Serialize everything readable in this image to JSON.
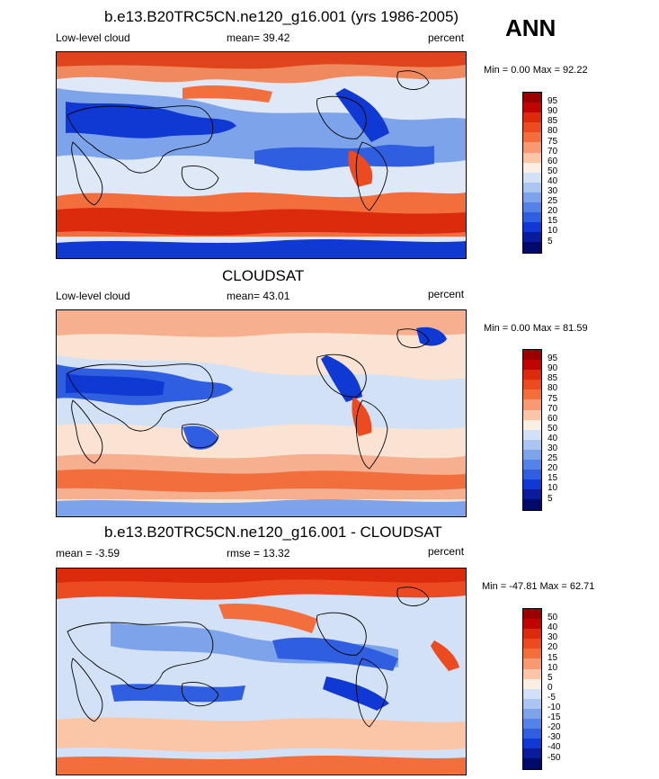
{
  "season": "ANN",
  "panels": [
    {
      "title": "b.e13.B20TRC5CN.ne120_g16.001 (yrs 1986-2005)",
      "left_label": "Low-level cloud",
      "center_label": "mean=  39.42",
      "right_label": "percent",
      "minmax": "Min =   0.00 Max =  92.22",
      "colorbar": {
        "labels": [
          "95",
          "90",
          "85",
          "80",
          "75",
          "70",
          "60",
          "50",
          "40",
          "30",
          "25",
          "20",
          "15",
          "10",
          "5"
        ],
        "colors": [
          "#9b0000",
          "#c00500",
          "#dc2a0d",
          "#ec4a20",
          "#f36e3d",
          "#f79a72",
          "#fbc5a8",
          "#fdeee4",
          "#d2e1f5",
          "#a8c6ef",
          "#7da4ea",
          "#5582e6",
          "#2f5fe0",
          "#1038d2",
          "#081c9c",
          "#000a6b"
        ]
      }
    },
    {
      "title": "CLOUDSAT",
      "left_label": "Low-level cloud",
      "center_label": "mean=  43.01",
      "right_label": "percent",
      "minmax": "Min =   0.00 Max =  81.59",
      "colorbar": {
        "labels": [
          "95",
          "90",
          "85",
          "80",
          "75",
          "70",
          "60",
          "50",
          "40",
          "30",
          "25",
          "20",
          "15",
          "10",
          "5"
        ],
        "colors": [
          "#9b0000",
          "#c00500",
          "#dc2a0d",
          "#ec4a20",
          "#f36e3d",
          "#f79a72",
          "#fbc5a8",
          "#fdeee4",
          "#d2e1f5",
          "#a8c6ef",
          "#7da4ea",
          "#5582e6",
          "#2f5fe0",
          "#1038d2",
          "#081c9c",
          "#000a6b"
        ]
      }
    },
    {
      "title": "b.e13.B20TRC5CN.ne120_g16.001 - CLOUDSAT",
      "left_label": "mean =  -3.59",
      "center_label": "rmse =  13.32",
      "right_label": "percent",
      "minmax": "Min = -47.81 Max =  62.71",
      "colorbar": {
        "labels": [
          "50",
          "40",
          "30",
          "20",
          "15",
          "10",
          "5",
          "0",
          "-5",
          "-10",
          "-15",
          "-20",
          "-30",
          "-40",
          "-50"
        ],
        "colors": [
          "#9b0000",
          "#c00500",
          "#dc2a0d",
          "#ec4a20",
          "#f36e3d",
          "#f79a72",
          "#fbc5a8",
          "#fdeee4",
          "#d2e1f5",
          "#a8c6ef",
          "#7da4ea",
          "#5582e6",
          "#2f5fe0",
          "#1038d2",
          "#081c9c",
          "#000a6b"
        ]
      }
    }
  ]
}
